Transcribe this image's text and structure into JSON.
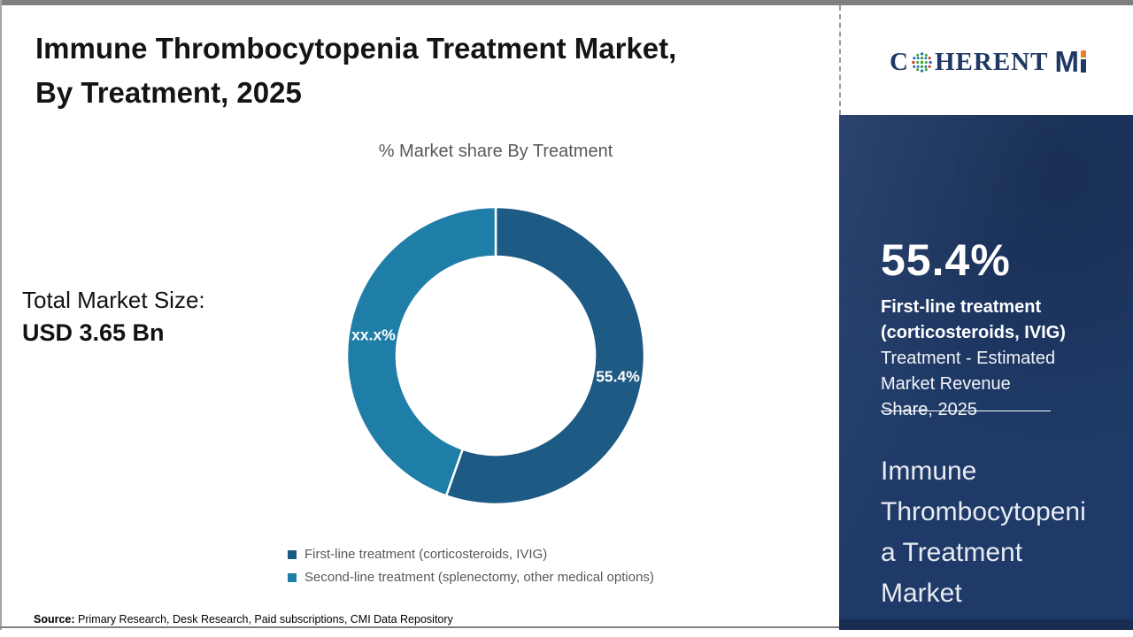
{
  "header": {
    "title_line1": "Immune Thrombocytopenia Treatment Market,",
    "title_line2": "By Treatment, 2025"
  },
  "logo": {
    "name": "CoherentMI",
    "part_c": "C",
    "part_rest": "HERENT",
    "part_m": "M",
    "navy": "#1f3864",
    "orange": "#e87e2f"
  },
  "stat_block": {
    "label": "Total Market Size:",
    "value": "USD 3.65 Bn"
  },
  "chart_data": {
    "type": "pie",
    "subtype": "donut",
    "title": "% Market share By Treatment",
    "labels": [
      "First-line treatment (corticosteroids, IVIG)",
      "Second-line treatment (splenectomy, other medical options)"
    ],
    "values": [
      55.4,
      44.6
    ],
    "display_labels": [
      "55.4%",
      "xx.x%"
    ],
    "colors": [
      "#1d5a84",
      "#1f7ea8"
    ],
    "start_angle_deg": 0,
    "direction": "clockwise",
    "inner_radius_ratio": 0.667,
    "legend_position": "bottom",
    "separator_color": "#ffffff"
  },
  "sidebar": {
    "big_stat": "55.4%",
    "stat_label_bold": "First-line treatment (corticosteroids, IVIG)",
    "stat_description": "Treatment - Estimated Market Revenue Share, 2025",
    "headline": "Immune Thrombocytopenia Treatment Market",
    "background": "#1f3a68"
  },
  "source": {
    "label": "Source:",
    "text": " Primary Research, Desk Research, Paid subscriptions, CMI Data Repository"
  }
}
